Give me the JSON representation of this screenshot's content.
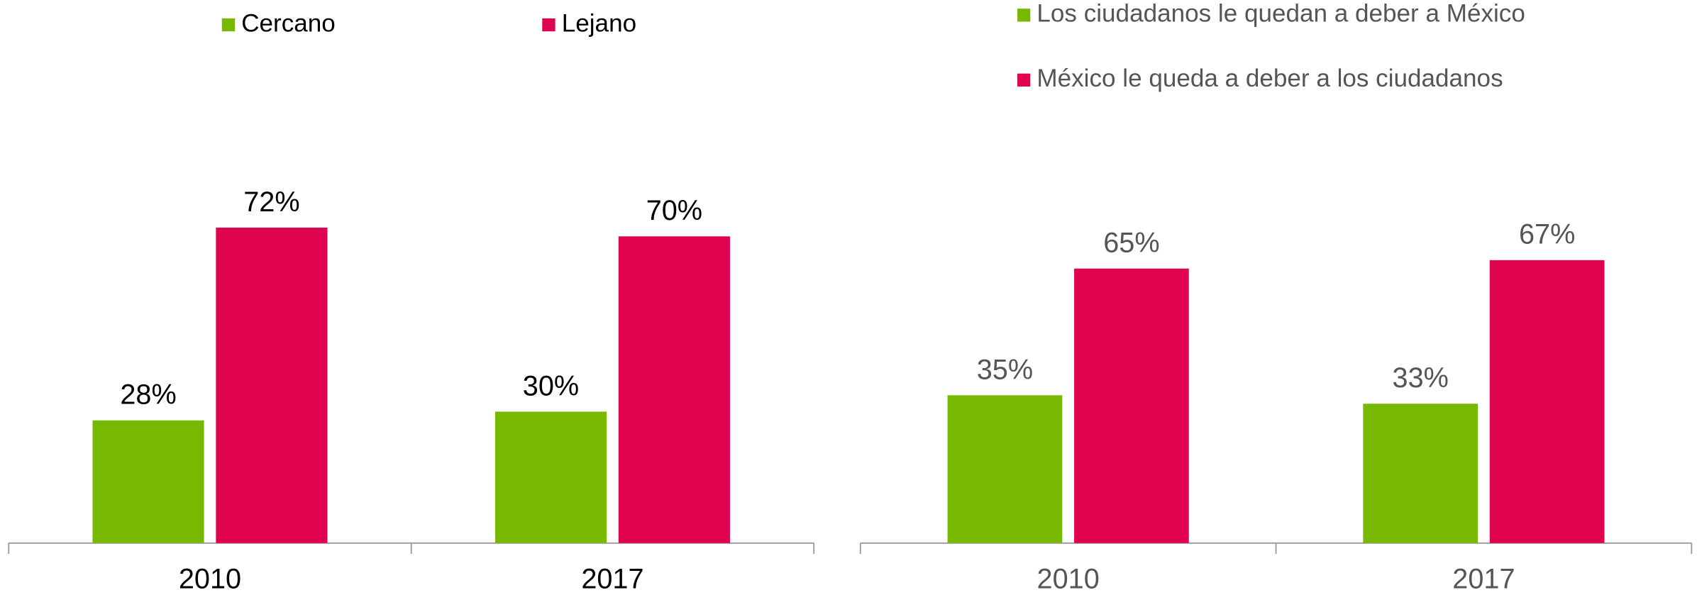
{
  "chart_data": [
    {
      "type": "bar",
      "categories": [
        "2010",
        "2017"
      ],
      "series": [
        {
          "name": "Cercano",
          "color": "#76b900",
          "values": [
            28,
            30
          ],
          "value_labels": [
            "28%",
            "30%"
          ]
        },
        {
          "name": "Lejano",
          "color": "#e0034f",
          "values": [
            72,
            70
          ],
          "value_labels": [
            "72%",
            "70%"
          ]
        }
      ],
      "ylim": [
        0,
        80
      ]
    },
    {
      "type": "bar",
      "categories": [
        "2010",
        "2017"
      ],
      "series": [
        {
          "name": "Los ciudadanos le quedan a deber a México",
          "color": "#76b900",
          "values": [
            35,
            33
          ],
          "value_labels": [
            "35%",
            "33%"
          ]
        },
        {
          "name": "México le queda a deber a los ciudadanos",
          "color": "#e0034f",
          "values": [
            65,
            67
          ],
          "value_labels": [
            "65%",
            "67%"
          ]
        }
      ],
      "ylim": [
        0,
        83
      ]
    }
  ]
}
